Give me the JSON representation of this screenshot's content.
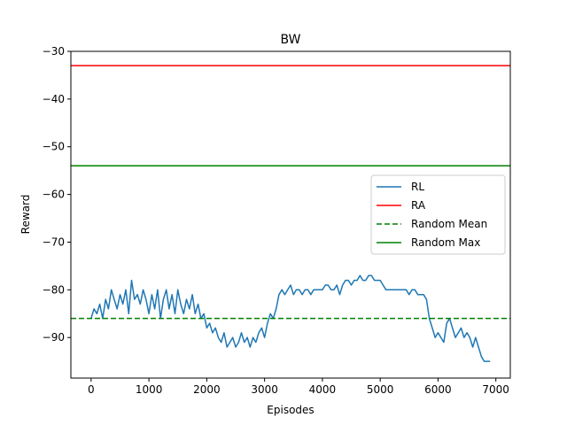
{
  "chart_data": {
    "type": "line",
    "title": "BW",
    "xlabel": "Episodes",
    "ylabel": "Reward",
    "xlim": [
      -350,
      7250
    ],
    "ylim": [
      -98.5,
      -30
    ],
    "xticks": [
      0,
      1000,
      2000,
      3000,
      4000,
      5000,
      6000,
      7000
    ],
    "xtick_labels": [
      "0",
      "1000",
      "2000",
      "3000",
      "4000",
      "5000",
      "6000",
      "7000"
    ],
    "yticks": [
      -90,
      -80,
      -70,
      -60,
      -50,
      -40,
      -30
    ],
    "ytick_labels": [
      "−90",
      "−80",
      "−70",
      "−60",
      "−50",
      "−40",
      "−30"
    ],
    "grid": false,
    "legend_position": "center-right",
    "series": [
      {
        "name": "RL",
        "color": "#1f77b4",
        "style": "solid",
        "x": [
          0,
          50,
          100,
          150,
          200,
          250,
          300,
          350,
          400,
          450,
          500,
          550,
          600,
          650,
          700,
          750,
          800,
          850,
          900,
          950,
          1000,
          1050,
          1100,
          1150,
          1200,
          1250,
          1300,
          1350,
          1400,
          1450,
          1500,
          1550,
          1600,
          1650,
          1700,
          1750,
          1800,
          1850,
          1900,
          1950,
          2000,
          2050,
          2100,
          2150,
          2200,
          2250,
          2300,
          2350,
          2400,
          2450,
          2500,
          2550,
          2600,
          2650,
          2700,
          2750,
          2800,
          2850,
          2900,
          2950,
          3000,
          3050,
          3100,
          3150,
          3200,
          3250,
          3300,
          3350,
          3400,
          3450,
          3500,
          3550,
          3600,
          3650,
          3700,
          3750,
          3800,
          3850,
          3900,
          3950,
          4000,
          4050,
          4100,
          4150,
          4200,
          4250,
          4300,
          4350,
          4400,
          4450,
          4500,
          4550,
          4600,
          4650,
          4700,
          4750,
          4800,
          4850,
          4900,
          4950,
          5000,
          5050,
          5100,
          5150,
          5200,
          5250,
          5300,
          5350,
          5400,
          5450,
          5500,
          5550,
          5600,
          5650,
          5700,
          5750,
          5800,
          5850,
          5900,
          5950,
          6000,
          6050,
          6100,
          6150,
          6200,
          6250,
          6300,
          6350,
          6400,
          6450,
          6500,
          6550,
          6600,
          6650,
          6700,
          6750,
          6800,
          6850,
          6900
        ],
        "y": [
          -86,
          -84,
          -85,
          -83,
          -86,
          -82,
          -84,
          -80,
          -82,
          -84,
          -81,
          -83,
          -80,
          -85,
          -78,
          -82,
          -81,
          -83,
          -80,
          -82,
          -85,
          -81,
          -84,
          -80,
          -86,
          -82,
          -80,
          -84,
          -81,
          -85,
          -80,
          -83,
          -85,
          -82,
          -84,
          -81,
          -85,
          -83,
          -86,
          -85,
          -88,
          -87,
          -89,
          -88,
          -90,
          -91,
          -89,
          -92,
          -91,
          -90,
          -92,
          -91,
          -89,
          -91,
          -90,
          -92,
          -90,
          -91,
          -89,
          -88,
          -90,
          -87,
          -85,
          -86,
          -84,
          -81,
          -80,
          -81,
          -80,
          -79,
          -81,
          -80,
          -80,
          -81,
          -80,
          -80,
          -81,
          -80,
          -80,
          -80,
          -80,
          -79,
          -79,
          -80,
          -80,
          -79,
          -81,
          -79,
          -78,
          -78,
          -79,
          -78,
          -78,
          -77,
          -78,
          -78,
          -77,
          -77,
          -78,
          -78,
          -78,
          -79,
          -80,
          -80,
          -80,
          -80,
          -80,
          -80,
          -80,
          -80,
          -81,
          -80,
          -80,
          -81,
          -81,
          -81,
          -82,
          -86,
          -88,
          -90,
          -89,
          -90,
          -91,
          -87,
          -86,
          -88,
          -90,
          -89,
          -88,
          -90,
          -89,
          -90,
          -92,
          -90,
          -92,
          -94,
          -95,
          -95,
          -95
        ],
        "line_width": 1.5
      },
      {
        "name": "RA",
        "color": "#ff0000",
        "style": "solid",
        "hline": -33
      },
      {
        "name": "Random Mean",
        "color": "#008000",
        "style": "dashed",
        "hline": -86
      },
      {
        "name": "Random Max",
        "color": "#008000",
        "style": "solid",
        "hline": -54
      }
    ]
  }
}
